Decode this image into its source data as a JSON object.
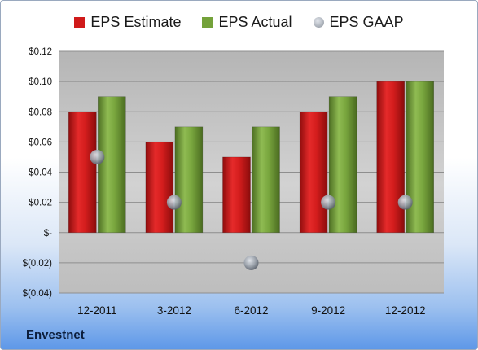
{
  "legend": {
    "estimate": "EPS Estimate",
    "actual": "EPS Actual",
    "gaap": "EPS GAAP"
  },
  "brand": "Envestnet",
  "colors": {
    "estimate": "#d01a1a",
    "actual": "#74a23a",
    "gaap": "#9aa3b0"
  },
  "chart_data": {
    "type": "bar",
    "categories": [
      "12-2011",
      "3-2012",
      "6-2012",
      "9-2012",
      "12-2012"
    ],
    "series": [
      {
        "name": "EPS Estimate",
        "type": "bar",
        "values": [
          0.08,
          0.06,
          0.05,
          0.08,
          0.1
        ]
      },
      {
        "name": "EPS Actual",
        "type": "bar",
        "values": [
          0.09,
          0.07,
          0.07,
          0.09,
          0.1
        ]
      },
      {
        "name": "EPS GAAP",
        "type": "scatter",
        "values": [
          0.05,
          0.02,
          -0.02,
          0.02,
          0.02
        ]
      }
    ],
    "ylim": [
      -0.04,
      0.12
    ],
    "yticks": [
      0.12,
      0.1,
      0.08,
      0.06,
      0.04,
      0.02,
      0,
      -0.02,
      -0.04
    ],
    "ytick_labels": [
      "$0.12",
      "$0.10",
      "$0.08",
      "$0.06",
      "$0.04",
      "$0.02",
      "$-",
      "$(0.02)",
      "$(0.04)"
    ],
    "grid": true,
    "legend_position": "top"
  }
}
